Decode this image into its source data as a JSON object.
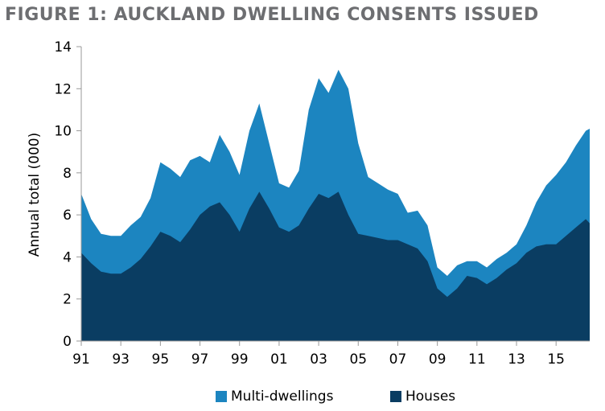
{
  "title": "FIGURE 1: AUCKLAND DWELLING CONSENTS ISSUED",
  "chart_data": {
    "type": "area",
    "stacked": true,
    "ylabel": "Annual total (000)",
    "xlabel": "",
    "ylim": [
      0,
      14
    ],
    "yticks": [
      0,
      2,
      4,
      6,
      8,
      10,
      12,
      14
    ],
    "xlim": [
      1991,
      2016.7
    ],
    "xtick_values": [
      1991,
      1993,
      1995,
      1997,
      1999,
      2001,
      2003,
      2005,
      2007,
      2009,
      2011,
      2013,
      2015
    ],
    "xtick_labels": [
      "91",
      "93",
      "95",
      "97",
      "99",
      "01",
      "03",
      "05",
      "07",
      "09",
      "11",
      "13",
      "15"
    ],
    "grid": false,
    "legend_position": "bottom",
    "x": [
      1991.0,
      1991.5,
      1992.0,
      1992.5,
      1993.0,
      1993.5,
      1994.0,
      1994.5,
      1995.0,
      1995.5,
      1996.0,
      1996.5,
      1997.0,
      1997.5,
      1998.0,
      1998.5,
      1999.0,
      1999.5,
      2000.0,
      2000.5,
      2001.0,
      2001.5,
      2002.0,
      2002.5,
      2003.0,
      2003.5,
      2004.0,
      2004.5,
      2005.0,
      2005.5,
      2006.0,
      2006.5,
      2007.0,
      2007.5,
      2008.0,
      2008.5,
      2009.0,
      2009.5,
      2010.0,
      2010.5,
      2011.0,
      2011.5,
      2012.0,
      2012.5,
      2013.0,
      2013.5,
      2014.0,
      2014.5,
      2015.0,
      2015.5,
      2016.0,
      2016.5,
      2016.7
    ],
    "series": [
      {
        "name": "Houses",
        "color": "#0a3d62",
        "values": [
          4.2,
          3.7,
          3.3,
          3.2,
          3.2,
          3.5,
          3.9,
          4.5,
          5.2,
          5.0,
          4.7,
          5.3,
          6.0,
          6.4,
          6.6,
          6.0,
          5.2,
          6.3,
          7.1,
          6.3,
          5.4,
          5.2,
          5.5,
          6.3,
          7.0,
          6.8,
          7.1,
          6.0,
          5.1,
          5.0,
          4.9,
          4.8,
          4.8,
          4.6,
          4.4,
          3.8,
          2.5,
          2.1,
          2.5,
          3.1,
          3.0,
          2.7,
          3.0,
          3.4,
          3.7,
          4.2,
          4.5,
          4.6,
          4.6,
          5.0,
          5.4,
          5.8,
          5.6
        ]
      },
      {
        "name": "Multi-dwellings",
        "color": "#1c85c0",
        "values": [
          2.8,
          2.1,
          1.8,
          1.8,
          1.8,
          2.0,
          2.0,
          2.3,
          3.3,
          3.2,
          3.1,
          3.3,
          2.8,
          2.1,
          3.2,
          3.0,
          2.7,
          3.7,
          4.2,
          3.1,
          2.1,
          2.1,
          2.6,
          4.7,
          5.5,
          5.0,
          5.8,
          6.0,
          4.3,
          2.8,
          2.6,
          2.4,
          2.2,
          1.5,
          1.8,
          1.7,
          1.0,
          1.0,
          1.1,
          0.7,
          0.8,
          0.8,
          0.9,
          0.8,
          0.9,
          1.3,
          2.1,
          2.8,
          3.3,
          3.5,
          3.9,
          4.2,
          4.5
        ]
      }
    ]
  }
}
